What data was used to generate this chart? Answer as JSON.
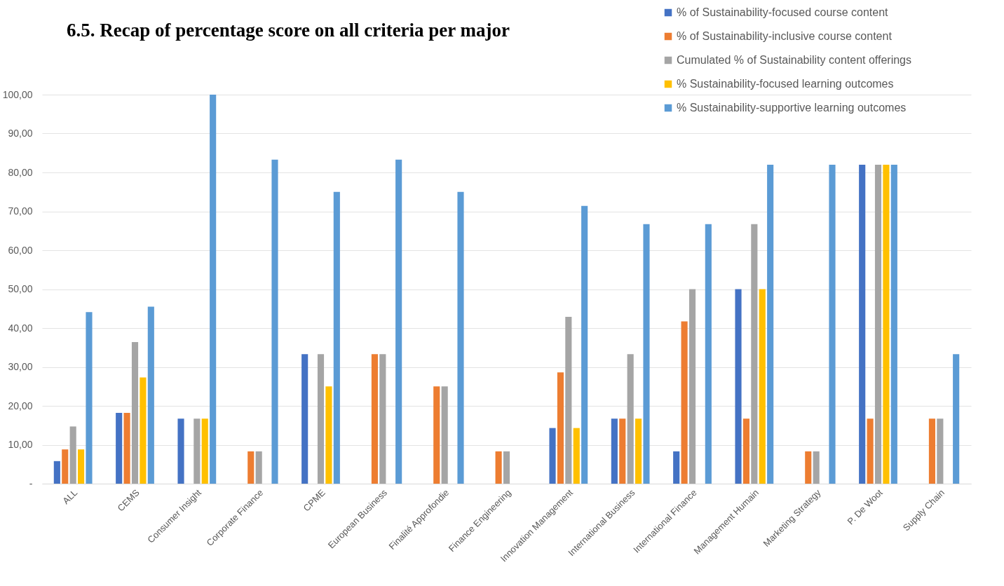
{
  "chart_data": {
    "type": "bar",
    "title": "6.5. Recap of percentage score on all criteria per major",
    "categories": [
      "ALL",
      "CEMS",
      "Consumer Insight",
      "Corporate Finance",
      "CPME",
      "European Business",
      "Finalité Approfondie",
      "Finance Engineering",
      "Innovation Management",
      "International Business",
      "International Finance",
      "Management Humain",
      "Marketing Strategy",
      "P. De Woot",
      "Supply Chain"
    ],
    "series": [
      {
        "name": "% of Sustainability-focused course content",
        "color": "#4472c4",
        "values": [
          5.8,
          18.2,
          16.7,
          0,
          33.3,
          0,
          0,
          0,
          14.3,
          16.7,
          8.3,
          50,
          0,
          82,
          0
        ]
      },
      {
        "name": "% of Sustainability-inclusive course content",
        "color": "#ed7d31",
        "values": [
          8.8,
          18.2,
          0,
          8.3,
          0,
          33.3,
          25,
          8.3,
          28.6,
          16.7,
          41.7,
          16.7,
          8.3,
          16.7,
          16.7
        ]
      },
      {
        "name": "Cumulated % of Sustainability content offerings",
        "color": "#a5a5a5",
        "values": [
          14.7,
          36.4,
          16.7,
          8.3,
          33.3,
          33.3,
          25,
          8.3,
          42.9,
          33.3,
          50,
          66.7,
          8.3,
          82,
          16.7
        ]
      },
      {
        "name": "% Sustainability-focused learning outcomes",
        "color": "#ffc000",
        "values": [
          8.8,
          27.3,
          16.7,
          0,
          25,
          0,
          0,
          0,
          14.3,
          16.7,
          0,
          50,
          0,
          82,
          0
        ]
      },
      {
        "name": "% Sustainability-supportive learning outcomes",
        "color": "#5b9bd5",
        "values": [
          44.1,
          45.5,
          100,
          83.3,
          75,
          83.3,
          75,
          0,
          71.4,
          66.7,
          66.7,
          82,
          82,
          82,
          33.3
        ]
      }
    ],
    "ylim": [
      0,
      100
    ],
    "yticks": [
      {
        "value": 0,
        "label": "-"
      },
      {
        "value": 10,
        "label": "10,00"
      },
      {
        "value": 20,
        "label": "20,00"
      },
      {
        "value": 30,
        "label": "30,00"
      },
      {
        "value": 40,
        "label": "40,00"
      },
      {
        "value": 50,
        "label": "50,00"
      },
      {
        "value": 60,
        "label": "60,00"
      },
      {
        "value": 70,
        "label": "70,00"
      },
      {
        "value": 80,
        "label": "80,00"
      },
      {
        "value": 90,
        "label": "90,00"
      },
      {
        "value": 100,
        "label": "100,00"
      }
    ],
    "grid": "y",
    "legend": "top right"
  }
}
